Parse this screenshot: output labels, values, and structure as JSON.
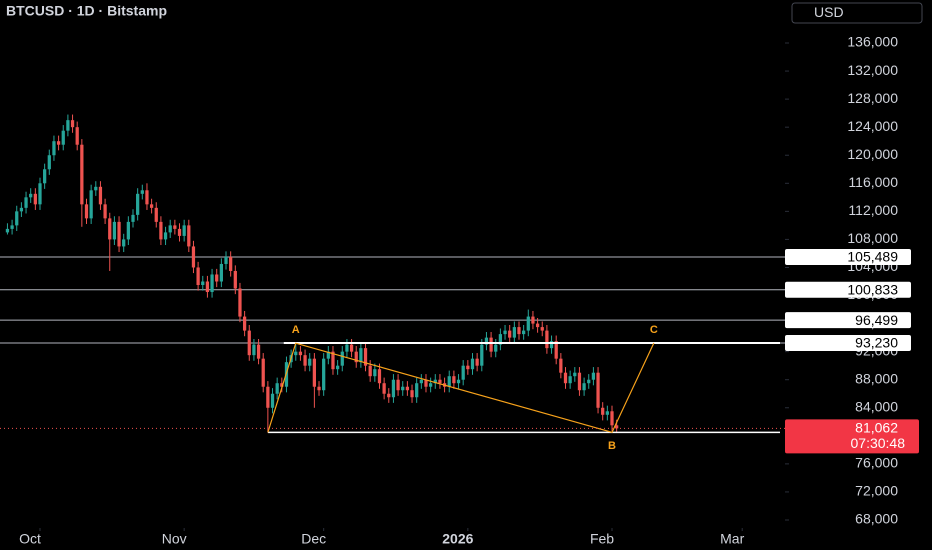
{
  "chart_data": {
    "type": "candlestick",
    "title": "BTCUSD · 1D · Bitstamp",
    "currency": "USD",
    "up_color": "#26a69a",
    "down_color": "#ef5350",
    "xlim": [
      -1.6,
      167.2
    ],
    "xticks": [
      {
        "value": 7,
        "label": "Oct"
      },
      {
        "value": 38,
        "label": "Nov"
      },
      {
        "value": 68,
        "label": "Dec"
      },
      {
        "value": 99,
        "label": "2026"
      },
      {
        "value": 130,
        "label": "Feb"
      },
      {
        "value": 158,
        "label": "Mar"
      }
    ],
    "ylim": [
      66860,
      142130
    ],
    "yticks": [
      {
        "value": 68000,
        "label": "68,000"
      },
      {
        "value": 72000,
        "label": "72,000"
      },
      {
        "value": 76000,
        "label": "76,000"
      },
      {
        "value": 80000,
        "label": "80,000"
      },
      {
        "value": 84000,
        "label": "84,000"
      },
      {
        "value": 88000,
        "label": "88,000"
      },
      {
        "value": 92000,
        "label": "92,000"
      },
      {
        "value": 96000,
        "label": "96,000"
      },
      {
        "value": 100000,
        "label": "100,000"
      },
      {
        "value": 104000,
        "label": "104,000"
      },
      {
        "value": 108000,
        "label": "108,000"
      },
      {
        "value": 112000,
        "label": "112,000"
      },
      {
        "value": 116000,
        "label": "116,000"
      },
      {
        "value": 120000,
        "label": "120,000"
      },
      {
        "value": 124000,
        "label": "124,000"
      },
      {
        "value": 128000,
        "label": "128,000"
      },
      {
        "value": 132000,
        "label": "132,000"
      },
      {
        "value": 136000,
        "label": "136,000"
      }
    ],
    "levels": [
      {
        "value": 105489,
        "label": "105,489"
      },
      {
        "value": 100833,
        "label": "100,833"
      },
      {
        "value": 96499,
        "label": "96,499"
      },
      {
        "value": 93230,
        "label": "93,230"
      }
    ],
    "last_price": {
      "value": 81062,
      "label": "81,062",
      "countdown": "07:30:48"
    },
    "pattern": {
      "color": "#f7a21b",
      "start": {
        "x": 56,
        "y": 80500
      },
      "points": [
        {
          "label": "A",
          "x": 62,
          "y": 93200
        },
        {
          "label": "B",
          "x": 130,
          "y": 80500
        },
        {
          "label": "C",
          "x": 139,
          "y": 93230
        }
      ]
    },
    "candles": [
      [
        109000,
        110300,
        108700,
        109500
      ],
      [
        109500,
        110800,
        108700,
        110000
      ],
      [
        110000,
        112800,
        109200,
        112000
      ],
      [
        112000,
        113300,
        111200,
        112500
      ],
      [
        112500,
        114800,
        111700,
        114000
      ],
      [
        114000,
        115300,
        113200,
        114500
      ],
      [
        114500,
        115300,
        112200,
        113000
      ],
      [
        113000,
        116800,
        112200,
        116000
      ],
      [
        116000,
        118800,
        115200,
        118000
      ],
      [
        118000,
        120800,
        117200,
        120000
      ],
      [
        120000,
        122800,
        119200,
        122000
      ],
      [
        122000,
        122800,
        120700,
        121500
      ],
      [
        121500,
        124300,
        120700,
        123500
      ],
      [
        123500,
        125800,
        122700,
        125000
      ],
      [
        125000,
        125800,
        123200,
        124000
      ],
      [
        124000,
        124800,
        120700,
        121500
      ],
      [
        121500,
        122300,
        109800,
        113000
      ],
      [
        113000,
        113800,
        110200,
        111000
      ],
      [
        111000,
        115800,
        110200,
        115000
      ],
      [
        115000,
        116300,
        114200,
        115500
      ],
      [
        115500,
        116300,
        112200,
        113000
      ],
      [
        113000,
        113800,
        110200,
        111000
      ],
      [
        111000,
        111800,
        103500,
        108000
      ],
      [
        108000,
        111300,
        107200,
        110500
      ],
      [
        110500,
        111300,
        106200,
        107000
      ],
      [
        107000,
        108800,
        106200,
        108000
      ],
      [
        108000,
        111300,
        107200,
        110500
      ],
      [
        110500,
        112300,
        109700,
        111500
      ],
      [
        111500,
        115300,
        110700,
        114500
      ],
      [
        114500,
        115800,
        113700,
        115000
      ],
      [
        115000,
        116000,
        112200,
        113000
      ],
      [
        113000,
        113800,
        111700,
        112500
      ],
      [
        112500,
        113300,
        109700,
        110500
      ],
      [
        110500,
        111300,
        107200,
        108000
      ],
      [
        108000,
        109800,
        107200,
        109000
      ],
      [
        109000,
        110800,
        108200,
        110000
      ],
      [
        110000,
        110800,
        108700,
        109500
      ],
      [
        109500,
        110300,
        107700,
        108500
      ],
      [
        108500,
        110800,
        107700,
        110000
      ],
      [
        110000,
        110800,
        106200,
        107000
      ],
      [
        107000,
        107800,
        103200,
        104000
      ],
      [
        104000,
        104800,
        100700,
        101500
      ],
      [
        101500,
        102800,
        100700,
        102000
      ],
      [
        102000,
        102800,
        99700,
        100500
      ],
      [
        100500,
        103800,
        99700,
        103000
      ],
      [
        103000,
        103800,
        101200,
        102000
      ],
      [
        102000,
        105300,
        101200,
        104500
      ],
      [
        104500,
        106300,
        103700,
        105500
      ],
      [
        105500,
        106300,
        102700,
        103500
      ],
      [
        103500,
        104300,
        100200,
        101000
      ],
      [
        101000,
        101800,
        96200,
        97000
      ],
      [
        97000,
        97800,
        94200,
        95000
      ],
      [
        95000,
        95800,
        90700,
        91500
      ],
      [
        91500,
        93800,
        90700,
        93000
      ],
      [
        93000,
        93800,
        90200,
        91000
      ],
      [
        91000,
        91800,
        86200,
        87000
      ],
      [
        87000,
        87800,
        80500,
        84000
      ],
      [
        84000,
        86800,
        83200,
        86000
      ],
      [
        86000,
        88300,
        85200,
        87500
      ],
      [
        87500,
        88300,
        86200,
        87000
      ],
      [
        87000,
        91300,
        86200,
        90500
      ],
      [
        90500,
        92300,
        89700,
        91500
      ],
      [
        91500,
        93200,
        90700,
        92000
      ],
      [
        92000,
        92800,
        90700,
        91500
      ],
      [
        91500,
        92300,
        89200,
        90000
      ],
      [
        90000,
        91800,
        89200,
        91000
      ],
      [
        91000,
        91800,
        84000,
        87000
      ],
      [
        87000,
        87800,
        85700,
        86500
      ],
      [
        86500,
        91800,
        85700,
        91000
      ],
      [
        91000,
        92800,
        90200,
        92000
      ],
      [
        92000,
        92800,
        88700,
        89500
      ],
      [
        89500,
        90800,
        88700,
        90000
      ],
      [
        90000,
        92800,
        89200,
        92000
      ],
      [
        92000,
        93800,
        91200,
        93000
      ],
      [
        93000,
        93800,
        91200,
        92000
      ],
      [
        92000,
        92800,
        89700,
        90500
      ],
      [
        90500,
        93300,
        89700,
        92500
      ],
      [
        92500,
        93300,
        89200,
        90000
      ],
      [
        90000,
        90800,
        87700,
        88500
      ],
      [
        88500,
        90300,
        87700,
        89500
      ],
      [
        89500,
        90300,
        86700,
        87500
      ],
      [
        87500,
        88300,
        85200,
        86000
      ],
      [
        86000,
        86800,
        84700,
        85500
      ],
      [
        85500,
        88800,
        84700,
        88000
      ],
      [
        88000,
        88800,
        85700,
        86500
      ],
      [
        86500,
        87800,
        85700,
        87000
      ],
      [
        87000,
        87800,
        85700,
        86500
      ],
      [
        86500,
        87300,
        84700,
        85500
      ],
      [
        85500,
        88300,
        84700,
        87500
      ],
      [
        87500,
        88800,
        86700,
        88000
      ],
      [
        88000,
        88800,
        86200,
        87000
      ],
      [
        87000,
        88300,
        86200,
        87500
      ],
      [
        87500,
        88800,
        86700,
        88000
      ],
      [
        88000,
        88800,
        86700,
        87500
      ],
      [
        87500,
        88300,
        86200,
        87000
      ],
      [
        87000,
        89300,
        86200,
        88500
      ],
      [
        88500,
        89300,
        86700,
        87500
      ],
      [
        87500,
        88800,
        86700,
        88000
      ],
      [
        88000,
        90800,
        87200,
        90000
      ],
      [
        90000,
        90800,
        88700,
        89500
      ],
      [
        89500,
        91800,
        88700,
        91000
      ],
      [
        91000,
        91800,
        89200,
        90000
      ],
      [
        90000,
        93800,
        89200,
        93000
      ],
      [
        93000,
        94800,
        92200,
        94000
      ],
      [
        94000,
        94800,
        91200,
        92000
      ],
      [
        92000,
        93800,
        91200,
        93000
      ],
      [
        93000,
        95300,
        92200,
        94500
      ],
      [
        94500,
        95800,
        93700,
        95000
      ],
      [
        95000,
        95800,
        93200,
        94000
      ],
      [
        94000,
        96300,
        93200,
        95500
      ],
      [
        95500,
        96300,
        93700,
        94500
      ],
      [
        94500,
        95800,
        93700,
        95000
      ],
      [
        95000,
        98000,
        94200,
        97000
      ],
      [
        97000,
        97800,
        95200,
        96000
      ],
      [
        96000,
        96800,
        94700,
        95500
      ],
      [
        95500,
        96300,
        94200,
        95000
      ],
      [
        95000,
        95800,
        91700,
        92500
      ],
      [
        92500,
        94300,
        91700,
        93500
      ],
      [
        93500,
        94300,
        90200,
        91000
      ],
      [
        91000,
        91800,
        88200,
        89000
      ],
      [
        89000,
        89800,
        86700,
        87500
      ],
      [
        87500,
        89300,
        86700,
        88500
      ],
      [
        88500,
        89800,
        87700,
        89000
      ],
      [
        89000,
        89800,
        85700,
        86500
      ],
      [
        86500,
        88300,
        85700,
        87500
      ],
      [
        87500,
        88800,
        86700,
        88000
      ],
      [
        88000,
        89800,
        87200,
        89000
      ],
      [
        89000,
        89800,
        83200,
        84000
      ],
      [
        84000,
        84800,
        82200,
        83000
      ],
      [
        83000,
        84300,
        82200,
        83500
      ],
      [
        83500,
        84300,
        80700,
        81500
      ],
      [
        81500,
        82300,
        80500,
        81062
      ]
    ]
  }
}
